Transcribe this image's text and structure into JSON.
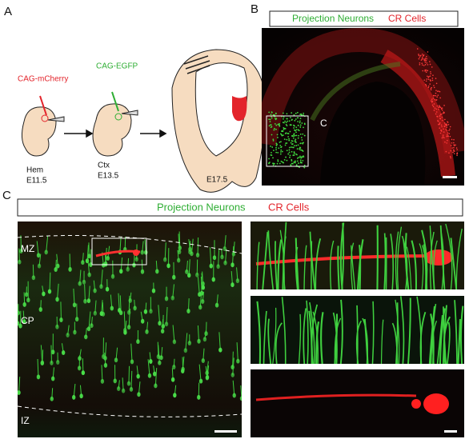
{
  "panels": {
    "A": {
      "label": "A",
      "constructs": [
        "CAG-mCherry",
        "CAG-EGFP"
      ],
      "stages": [
        {
          "region": "Hem",
          "age": "E11.5"
        },
        {
          "region": "Ctx",
          "age": "E13.5"
        },
        {
          "age": "E17.5"
        }
      ]
    },
    "B": {
      "label": "B",
      "legend": [
        "Projection Neurons",
        "CR Cells"
      ],
      "inset_label": "C"
    },
    "C": {
      "label": "C",
      "legend": [
        "Projection Neurons",
        "CR Cells"
      ],
      "layers": [
        "MZ",
        "CP",
        "IZ"
      ]
    }
  }
}
